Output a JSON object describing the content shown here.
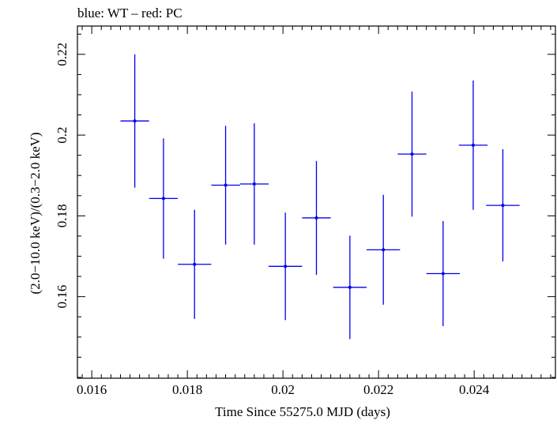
{
  "chart_data": {
    "type": "scatter",
    "title": "blue: WT – red: PC",
    "xlabel": "Time Since 55275.0 MJD (days)",
    "ylabel": "(2.0−10.0 keV)/(0.3−2.0 keV)",
    "xlim": [
      0.0157,
      0.0257
    ],
    "ylim": [
      0.1398,
      0.227
    ],
    "x_ticks": [
      {
        "value": 0.016,
        "label": "0.016"
      },
      {
        "value": 0.018,
        "label": "0.018"
      },
      {
        "value": 0.02,
        "label": "0.02"
      },
      {
        "value": 0.022,
        "label": "0.022"
      },
      {
        "value": 0.024,
        "label": "0.024"
      }
    ],
    "y_ticks": [
      {
        "value": 0.16,
        "label": "0.16"
      },
      {
        "value": 0.18,
        "label": "0.18"
      },
      {
        "value": 0.2,
        "label": "0.2"
      },
      {
        "value": 0.22,
        "label": "0.22"
      }
    ],
    "grid": false,
    "series": [
      {
        "name": "WT",
        "color": "#0000ee",
        "points": [
          {
            "x": 0.0169,
            "y": 0.2035,
            "xerr": 0.0003,
            "yerr_low": 0.0165,
            "yerr_high": 0.0165
          },
          {
            "x": 0.0175,
            "y": 0.1843,
            "xerr": 0.0003,
            "yerr_low": 0.0149,
            "yerr_high": 0.0149
          },
          {
            "x": 0.01815,
            "y": 0.168,
            "xerr": 0.00035,
            "yerr_low": 0.0135,
            "yerr_high": 0.0135
          },
          {
            "x": 0.0188,
            "y": 0.1876,
            "xerr": 0.0003,
            "yerr_low": 0.0147,
            "yerr_high": 0.0147
          },
          {
            "x": 0.0194,
            "y": 0.1879,
            "xerr": 0.0003,
            "yerr_low": 0.015,
            "yerr_high": 0.015
          },
          {
            "x": 0.02005,
            "y": 0.1675,
            "xerr": 0.00035,
            "yerr_low": 0.0133,
            "yerr_high": 0.0133
          },
          {
            "x": 0.0207,
            "y": 0.1795,
            "xerr": 0.0003,
            "yerr_low": 0.0141,
            "yerr_high": 0.0141
          },
          {
            "x": 0.0214,
            "y": 0.1623,
            "xerr": 0.00035,
            "yerr_low": 0.0128,
            "yerr_high": 0.0128
          },
          {
            "x": 0.0221,
            "y": 0.1716,
            "xerr": 0.00035,
            "yerr_low": 0.0136,
            "yerr_high": 0.0136
          },
          {
            "x": 0.0227,
            "y": 0.1953,
            "xerr": 0.0003,
            "yerr_low": 0.0155,
            "yerr_high": 0.0155
          },
          {
            "x": 0.02335,
            "y": 0.1657,
            "xerr": 0.00035,
            "yerr_low": 0.013,
            "yerr_high": 0.013
          },
          {
            "x": 0.02398,
            "y": 0.1975,
            "xerr": 0.0003,
            "yerr_low": 0.016,
            "yerr_high": 0.016
          },
          {
            "x": 0.0246,
            "y": 0.1826,
            "xerr": 0.00035,
            "yerr_low": 0.0139,
            "yerr_high": 0.0139
          }
        ]
      }
    ]
  }
}
